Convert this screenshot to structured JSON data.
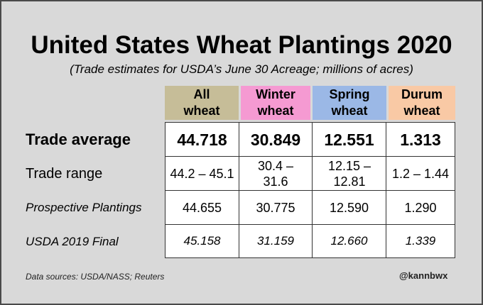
{
  "title": "United States Wheat Plantings 2020",
  "subtitle": "(Trade estimates for USDA’s June 30 Acreage; millions of acres)",
  "columns": [
    {
      "line1": "All",
      "line2": "wheat",
      "color": "#c6bd98"
    },
    {
      "line1": "Winter",
      "line2": "wheat",
      "color": "#f59ad2"
    },
    {
      "line1": "Spring",
      "line2": "wheat",
      "color": "#9bb8e6"
    },
    {
      "line1": "Durum",
      "line2": "wheat",
      "color": "#f9c9a5"
    }
  ],
  "rows": [
    {
      "label": "Trade average",
      "values": [
        "44.718",
        "30.849",
        "12.551",
        "1.313"
      ]
    },
    {
      "label": "Trade range",
      "values": [
        "44.2 – 45.1",
        "30.4 – 31.6",
        "12.15 – 12.81",
        "1.2 – 1.44"
      ]
    },
    {
      "label": "Prospective Plantings",
      "values": [
        "44.655",
        "30.775",
        "12.590",
        "1.290"
      ]
    },
    {
      "label": "USDA 2019 Final",
      "values": [
        "45.158",
        "31.159",
        "12.660",
        "1.339"
      ]
    }
  ],
  "footer": {
    "source": "Data sources: USDA/NASS; Reuters",
    "handle": "@kannbwx"
  },
  "chart_data": {
    "type": "table",
    "title": "United States Wheat Plantings 2020",
    "subtitle": "(Trade estimates for USDA’s June 30 Acreage; millions of acres)",
    "columns": [
      "All wheat",
      "Winter wheat",
      "Spring wheat",
      "Durum wheat"
    ],
    "rows": [
      {
        "label": "Trade average",
        "values": [
          44.718,
          30.849,
          12.551,
          1.313
        ]
      },
      {
        "label": "Trade range",
        "values": [
          [
            44.2,
            45.1
          ],
          [
            30.4,
            31.6
          ],
          [
            12.15,
            12.81
          ],
          [
            1.2,
            1.44
          ]
        ]
      },
      {
        "label": "Prospective Plantings",
        "values": [
          44.655,
          30.775,
          12.59,
          1.29
        ]
      },
      {
        "label": "USDA 2019 Final",
        "values": [
          45.158,
          31.159,
          12.66,
          1.339
        ]
      }
    ]
  }
}
